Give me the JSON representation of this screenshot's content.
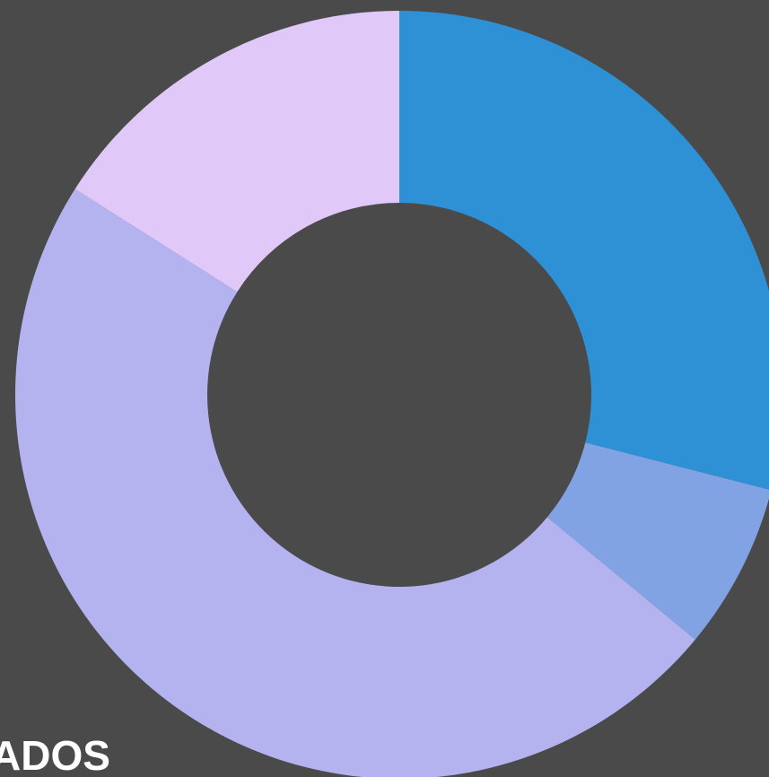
{
  "chart_data": {
    "type": "donut",
    "label": "ADOS",
    "values": [
      29,
      7,
      48,
      16
    ],
    "colors": [
      "#2e91d6",
      "#82a3e3",
      "#b5b3ef",
      "#e0c8f8"
    ]
  }
}
